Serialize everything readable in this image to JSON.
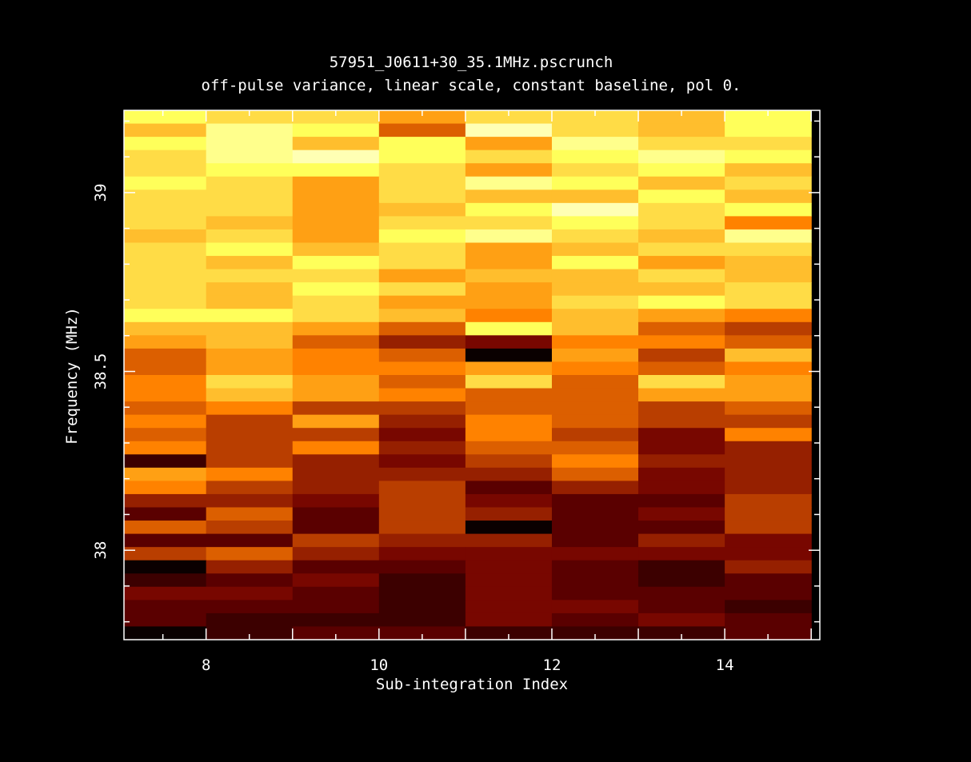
{
  "chart_data": {
    "type": "heatmap",
    "title": "57951_J0611+30_35.1MHz.pscrunch",
    "subtitle": "off-pulse variance, linear scale, constant baseline, pol 0.",
    "xlabel": "Sub-integration Index",
    "ylabel": "Frequency (MHz)",
    "xlim": [
      7.05,
      15.1
    ],
    "ylim": [
      37.75,
      39.23
    ],
    "x_ticks": [
      8,
      10,
      12,
      14
    ],
    "x_tick_labels": [
      "8",
      "10",
      "12",
      "14"
    ],
    "y_ticks": [
      38,
      38.5,
      39
    ],
    "y_tick_labels": [
      "38",
      "38.5",
      "39"
    ],
    "columns": [
      7,
      8,
      9,
      10,
      11,
      12,
      13,
      14
    ],
    "column_width": 1,
    "channel_count": 40,
    "scale": "linear",
    "colormap": "heat",
    "grid": false,
    "color_levels": [
      [
        3,
        4,
        4,
        6,
        4,
        4,
        5,
        3
      ],
      [
        5,
        2,
        3,
        8,
        1,
        4,
        5,
        3
      ],
      [
        3,
        2,
        5,
        3,
        6,
        2,
        4,
        4
      ],
      [
        4,
        2,
        1,
        3,
        4,
        3,
        2,
        3
      ],
      [
        4,
        3,
        3,
        4,
        6,
        4,
        3,
        5
      ],
      [
        3,
        4,
        6,
        4,
        2,
        3,
        5,
        4
      ],
      [
        4,
        4,
        6,
        4,
        5,
        5,
        3,
        5
      ],
      [
        4,
        4,
        6,
        5,
        3,
        1,
        4,
        3
      ],
      [
        4,
        5,
        6,
        4,
        4,
        3,
        4,
        7
      ],
      [
        5,
        4,
        6,
        3,
        2,
        4,
        5,
        2
      ],
      [
        4,
        3,
        5,
        4,
        6,
        5,
        4,
        4
      ],
      [
        4,
        5,
        3,
        4,
        6,
        3,
        6,
        5
      ],
      [
        4,
        4,
        4,
        6,
        5,
        5,
        4,
        5
      ],
      [
        4,
        5,
        3,
        4,
        6,
        5,
        5,
        4
      ],
      [
        4,
        5,
        4,
        6,
        6,
        4,
        3,
        4
      ],
      [
        3,
        3,
        4,
        5,
        7,
        5,
        6,
        7
      ],
      [
        5,
        5,
        6,
        8,
        3,
        5,
        8,
        9
      ],
      [
        6,
        5,
        8,
        10,
        11,
        7,
        7,
        8
      ],
      [
        8,
        6,
        7,
        8,
        14,
        6,
        9,
        5
      ],
      [
        8,
        6,
        7,
        7,
        6,
        7,
        8,
        7
      ],
      [
        7,
        4,
        6,
        8,
        4,
        8,
        4,
        6
      ],
      [
        7,
        5,
        6,
        7,
        8,
        8,
        6,
        6
      ],
      [
        8,
        7,
        9,
        9,
        8,
        8,
        9,
        8
      ],
      [
        7,
        9,
        6,
        10,
        7,
        8,
        9,
        9
      ],
      [
        8,
        9,
        9,
        11,
        7,
        9,
        11,
        7
      ],
      [
        7,
        9,
        7,
        10,
        8,
        8,
        11,
        10
      ],
      [
        13,
        9,
        10,
        11,
        9,
        7,
        10,
        10
      ],
      [
        6,
        7,
        10,
        10,
        10,
        8,
        11,
        10
      ],
      [
        7,
        9,
        10,
        9,
        12,
        10,
        11,
        10
      ],
      [
        10,
        10,
        11,
        9,
        11,
        12,
        12,
        9
      ],
      [
        12,
        8,
        12,
        9,
        10,
        12,
        11,
        9
      ],
      [
        8,
        9,
        12,
        9,
        14,
        12,
        12,
        9
      ],
      [
        12,
        12,
        9,
        10,
        10,
        12,
        10,
        11
      ],
      [
        9,
        8,
        10,
        11,
        11,
        11,
        11,
        11
      ],
      [
        14,
        10,
        12,
        12,
        11,
        12,
        13,
        10
      ],
      [
        13,
        12,
        11,
        13,
        11,
        12,
        13,
        12
      ],
      [
        11,
        11,
        12,
        13,
        11,
        12,
        12,
        12
      ],
      [
        12,
        12,
        12,
        13,
        11,
        11,
        12,
        13
      ],
      [
        12,
        13,
        13,
        13,
        11,
        12,
        11,
        12
      ],
      [
        14,
        13,
        12,
        12,
        13,
        13,
        13,
        12
      ]
    ]
  },
  "colors": {
    "background": "#000000",
    "frame": "#ffffff",
    "heat_scale": [
      "#fffff4",
      "#ffffb4",
      "#ffff8c",
      "#ffff5a",
      "#ffdc46",
      "#ffbe2d",
      "#ffa014",
      "#ff8200",
      "#dc5f00",
      "#b93e00",
      "#962000",
      "#780700",
      "#5a0000",
      "#3c0000",
      "#0a0000"
    ]
  }
}
